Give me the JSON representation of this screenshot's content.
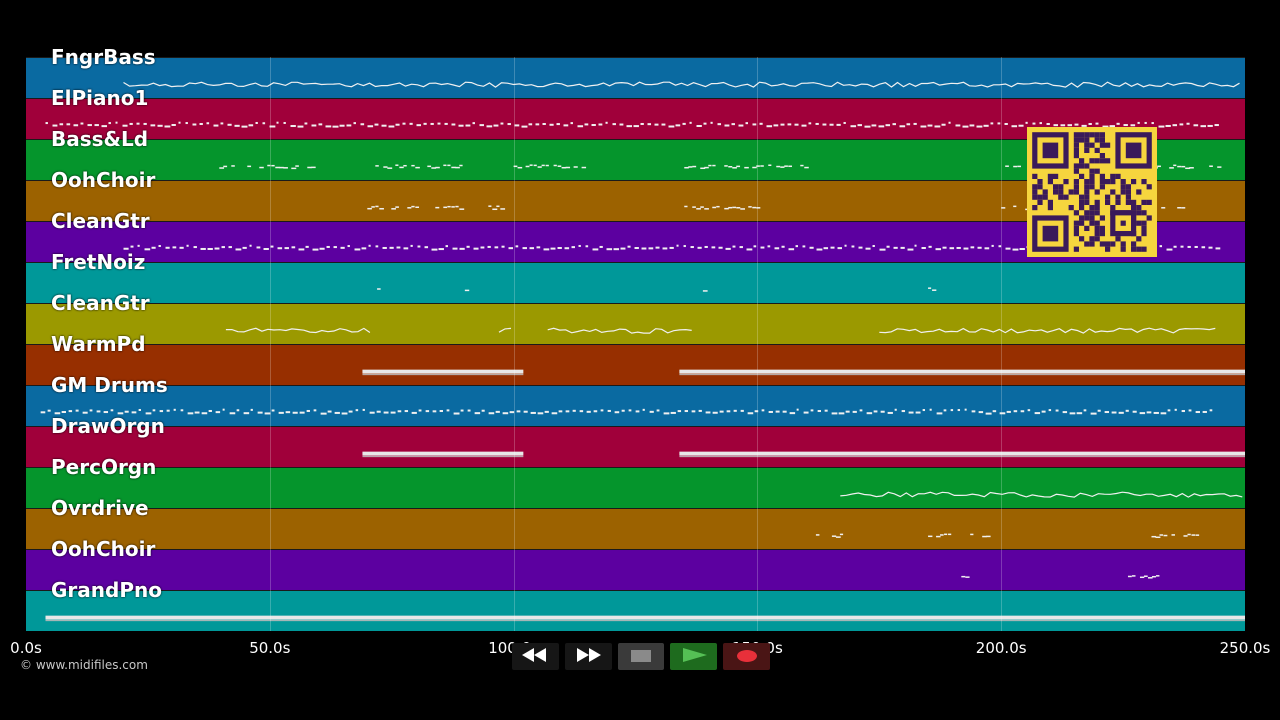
{
  "tracks": [
    {
      "name": "FngrBass",
      "color": "#0a6aa1",
      "style": "line",
      "segments": [
        [
          20,
          250
        ]
      ]
    },
    {
      "name": "ElPiano1",
      "color": "#a0003a",
      "style": "dash",
      "segments": [
        [
          4,
          245
        ]
      ]
    },
    {
      "name": "Bass&Ld",
      "color": "#05952c",
      "style": "dots",
      "segments": [
        [
          38,
          60
        ],
        [
          70,
          90
        ],
        [
          100,
          115
        ],
        [
          135,
          160
        ],
        [
          200,
          245
        ]
      ]
    },
    {
      "name": "OohChoir",
      "color": "#9c6200",
      "style": "dots",
      "segments": [
        [
          70,
          90
        ],
        [
          94,
          98
        ],
        [
          135,
          150
        ],
        [
          200,
          237
        ]
      ]
    },
    {
      "name": "CleanGtr",
      "color": "#5c00a0",
      "style": "dash",
      "segments": [
        [
          20,
          245
        ]
      ]
    },
    {
      "name": "FretNoiz",
      "color": "#009899",
      "style": "dots",
      "segments": [
        [
          72,
          73
        ],
        [
          90,
          91
        ],
        [
          138,
          139
        ],
        [
          185,
          186
        ]
      ]
    },
    {
      "name": "CleanGtr",
      "color": "#9b9900",
      "style": "line",
      "segments": [
        [
          41,
          71
        ],
        [
          97,
          100
        ],
        [
          107,
          137
        ],
        [
          175,
          245
        ]
      ]
    },
    {
      "name": "WarmPd",
      "color": "#972f00",
      "style": "bar",
      "segments": [
        [
          69,
          102
        ],
        [
          134,
          250
        ]
      ]
    },
    {
      "name": "GM Drums",
      "color": "#0a6aa1",
      "style": "dash",
      "segments": [
        [
          3,
          243
        ]
      ]
    },
    {
      "name": "DrawOrgn",
      "color": "#a0003a",
      "style": "bar",
      "segments": [
        [
          69,
          102
        ],
        [
          134,
          250
        ]
      ]
    },
    {
      "name": "PercOrgn",
      "color": "#05952c",
      "style": "line",
      "segments": [
        [
          167,
          250
        ]
      ]
    },
    {
      "name": "Ovrdrive",
      "color": "#9c6200",
      "style": "dots",
      "segments": [
        [
          162,
          168
        ],
        [
          185,
          190
        ],
        [
          192,
          198
        ],
        [
          230,
          240
        ]
      ]
    },
    {
      "name": "OohChoir",
      "color": "#5c00a0",
      "style": "dots",
      "segments": [
        [
          191,
          194
        ],
        [
          226,
          233
        ]
      ]
    },
    {
      "name": "GrandPno",
      "color": "#009899",
      "style": "bar",
      "segments": [
        [
          4,
          250
        ]
      ]
    }
  ],
  "timeline": {
    "range": [
      0,
      250
    ],
    "ticks": [
      {
        "value": 0,
        "label": "0.0s"
      },
      {
        "value": 50,
        "label": "50.0s"
      },
      {
        "value": 100,
        "label": "100.0s"
      },
      {
        "value": 150,
        "label": "150.0s"
      },
      {
        "value": 200,
        "label": "200.0s"
      },
      {
        "value": 250,
        "label": "250.0s"
      }
    ]
  },
  "copyright": "© www.midifiles.com",
  "controls": [
    {
      "id": "rewind",
      "icon": "rewind-icon",
      "bg": "#161616"
    },
    {
      "id": "fast-forward",
      "icon": "fast-forward-icon",
      "bg": "#161616"
    },
    {
      "id": "stop",
      "icon": "stop-icon",
      "bg": "#3a3a3a"
    },
    {
      "id": "play",
      "icon": "play-icon",
      "bg": "#1e6b1e"
    },
    {
      "id": "record",
      "icon": "record-icon",
      "bg": "#4a1515"
    }
  ],
  "qr_code": {
    "icon": "qr-code-icon",
    "color": "#f6d53e",
    "ink": "#3a1a5a"
  }
}
